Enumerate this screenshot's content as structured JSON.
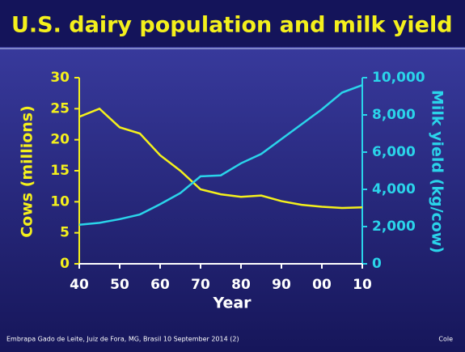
{
  "chart_data": {
    "type": "line",
    "title": "U.S. dairy population and milk yield",
    "xlabel": "Year",
    "ylabel": "Cows (millions)",
    "y2label": "Milk yield (kg/cow)",
    "categories": [
      "40",
      null,
      "50",
      null,
      "60",
      null,
      "70",
      null,
      "80",
      null,
      "90",
      null,
      "00",
      null,
      "10"
    ],
    "series": [
      {
        "name": "Cows (millions)",
        "color": "#f4f01c",
        "values": [
          23.7,
          25,
          22,
          21,
          17.5,
          15,
          12,
          11.2,
          10.8,
          11,
          10.1,
          9.5,
          9.2,
          9.0,
          9.1
        ]
      },
      {
        "name": "Milk yield (kg/cow)",
        "color": "#2ad4ea",
        "axis": "y2",
        "values": [
          2100,
          2200,
          2400,
          2650,
          3200,
          3800,
          4700,
          4750,
          5400,
          5900,
          6700,
          7500,
          8300,
          9200,
          9600
        ]
      }
    ],
    "ylim": [
      0,
      30
    ],
    "yticks": [
      0,
      5,
      10,
      15,
      20,
      25,
      30
    ],
    "y2lim": [
      0,
      10000
    ],
    "y2ticks": [
      0,
      {
        "value": 2000,
        "label": "2,000"
      },
      {
        "value": 4000,
        "label": "4,000"
      },
      {
        "value": 6000,
        "label": "6,000"
      },
      {
        "value": 8000,
        "label": "8,000"
      },
      {
        "value": 10000,
        "label": "10,000"
      }
    ]
  },
  "footer": {
    "left": "Embrapa Gado de Leite, Juiz de Fora, MG, Brasil 10 September 2014 (2)",
    "right": "Cole"
  }
}
